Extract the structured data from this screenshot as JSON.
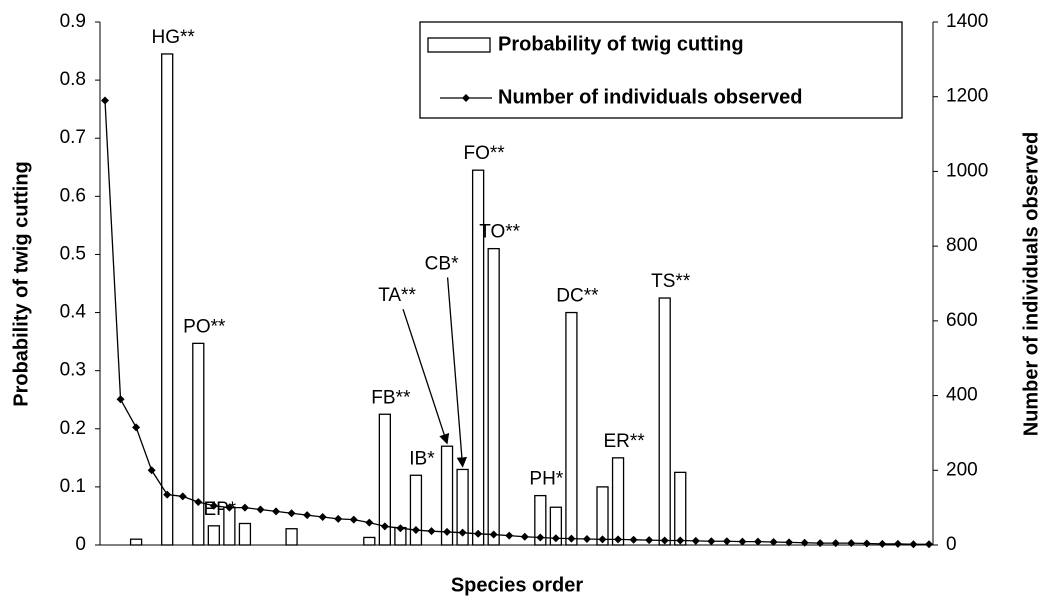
{
  "chart_data": {
    "type": "bar+line",
    "y_label": "Probability of twig cutting",
    "y2_label": "Number of individuals observed",
    "x_label": "Species order",
    "categories": [
      null,
      null,
      null,
      null,
      null,
      null,
      null,
      null,
      null,
      null,
      null,
      null,
      null,
      null,
      null,
      null,
      null,
      null,
      null,
      null,
      null,
      null,
      null,
      null,
      null,
      null,
      null,
      null,
      null,
      null,
      null,
      null,
      null,
      null,
      null,
      null,
      null,
      null,
      null,
      null,
      null,
      null,
      null,
      null,
      null,
      null,
      null,
      null,
      null,
      null,
      null,
      null,
      null,
      null
    ],
    "series": [
      {
        "name": "Probability of twig cutting",
        "type": "bar",
        "color": "#ffffff",
        "values": [
          0,
          0,
          0.01,
          0,
          0.845,
          0,
          0.347,
          0.033,
          0.065,
          0.037,
          0,
          0,
          0.028,
          0,
          0,
          0,
          0,
          0.013,
          0.225,
          0.03,
          0.12,
          0,
          0.17,
          0.13,
          0.645,
          0.51,
          0,
          0,
          0.085,
          0.065,
          0.4,
          0,
          0.1,
          0.15,
          0,
          0,
          0.425,
          0.125,
          0,
          0,
          0,
          0,
          0,
          0,
          0,
          0,
          0,
          0,
          0,
          0,
          0,
          0,
          0,
          0
        ],
        "bar_labels": [
          null,
          null,
          null,
          null,
          "HG**",
          null,
          "PO**",
          "EP*",
          null,
          null,
          null,
          null,
          null,
          null,
          null,
          null,
          null,
          null,
          "FB**",
          null,
          "IB*",
          null,
          "TA**",
          "CB*",
          "FO**",
          "TO**",
          null,
          null,
          "PH*",
          null,
          "DC**",
          null,
          null,
          "ER**",
          null,
          null,
          "TS**",
          null,
          null,
          null,
          null,
          null,
          null,
          null,
          null,
          null,
          null,
          null,
          null,
          null,
          null,
          null,
          null,
          null
        ]
      },
      {
        "name": "Number of individuals observed",
        "type": "line",
        "axis": "y2",
        "color": "#000000",
        "values": [
          1190,
          390,
          315,
          200,
          135,
          130,
          115,
          105,
          100,
          100,
          95,
          90,
          85,
          80,
          75,
          70,
          68,
          60,
          50,
          45,
          40,
          37,
          35,
          33,
          30,
          28,
          25,
          22,
          20,
          18,
          17,
          16,
          15,
          15,
          14,
          13,
          12,
          12,
          11,
          10,
          10,
          9,
          9,
          8,
          7,
          6,
          5,
          5,
          5,
          4,
          3,
          3,
          2,
          2
        ]
      }
    ],
    "ylim": [
      0,
      0.9
    ],
    "yticks": [
      0,
      0.1,
      0.2,
      0.3,
      0.4,
      0.5,
      0.6,
      0.7,
      0.8,
      0.9
    ],
    "y2lim": [
      0,
      1400
    ],
    "y2ticks": [
      0,
      200,
      400,
      600,
      800,
      1000,
      1200,
      1400
    ],
    "legend": "top-right"
  }
}
